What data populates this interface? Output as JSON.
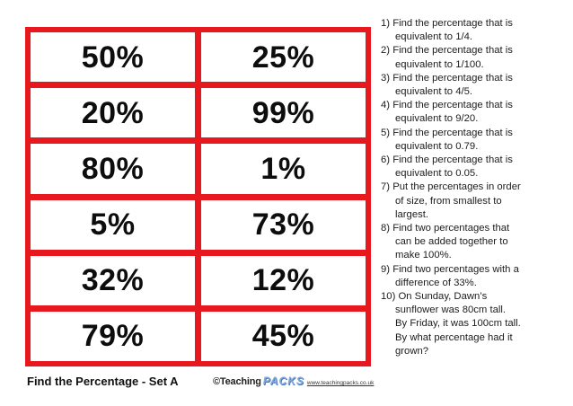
{
  "page": {
    "accent_red": "#e8191e",
    "logo_blue": "#7fa7dd",
    "text_black": "#0d0d0d"
  },
  "cards": [
    "50%",
    "25%",
    "20%",
    "99%",
    "80%",
    "1%",
    "5%",
    "73%",
    "32%",
    "12%",
    "79%",
    "45%"
  ],
  "questions": [
    {
      "num": "1)",
      "text": "Find the percentage that is\nequivalent to 1/4."
    },
    {
      "num": "2)",
      "text": "Find the percentage that is\nequivalent to 1/100."
    },
    {
      "num": "3)",
      "text": "Find the percentage that is\nequivalent to 4/5."
    },
    {
      "num": "4)",
      "text": "Find the percentage that is\nequivalent to 9/20."
    },
    {
      "num": "5)",
      "text": "Find the percentage that is\nequivalent to 0.79."
    },
    {
      "num": "6)",
      "text": "Find the percentage that is\nequivalent to 0.05."
    },
    {
      "num": "7)",
      "text": "Put the percentages in order\nof size, from smallest to\nlargest."
    },
    {
      "num": "8)",
      "text": "Find two percentages that\ncan be added together to\nmake 100%."
    },
    {
      "num": "9)",
      "text": "Find two percentages with a\ndifference of 33%."
    },
    {
      "num": "10)",
      "text": "On Sunday, Dawn’s\nsunflower was 80cm tall.\nBy Friday, it was 100cm tall.\nBy what percentage had it\ngrown?"
    }
  ],
  "footer": {
    "title": "Find the Percentage - Set A",
    "logo_copyright": "©Teaching",
    "logo_brand": "PACKS",
    "website": "www.teachingpacks.co.uk"
  }
}
